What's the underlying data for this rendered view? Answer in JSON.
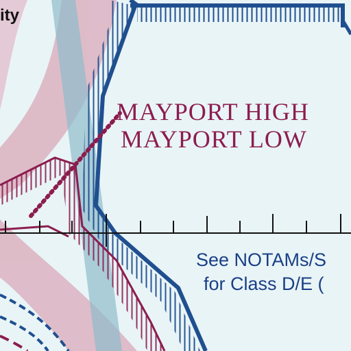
{
  "map": {
    "corner_fragment": "ity",
    "area_label_line1": "MAYPORT HIGH",
    "area_label_line2": "MAYPORT LOW",
    "note_line1": "See NOTAMs/S",
    "note_line2": "for Class D/E ("
  },
  "colors": {
    "background": "#e9f4f7",
    "moa_magenta": "#8c1d4e",
    "class_b_blue": "#1f4f8f",
    "note_blue": "#1a3f86",
    "pink_band": "#d9aab9",
    "teal_band": "#8ebccb",
    "ink": "#111111"
  }
}
